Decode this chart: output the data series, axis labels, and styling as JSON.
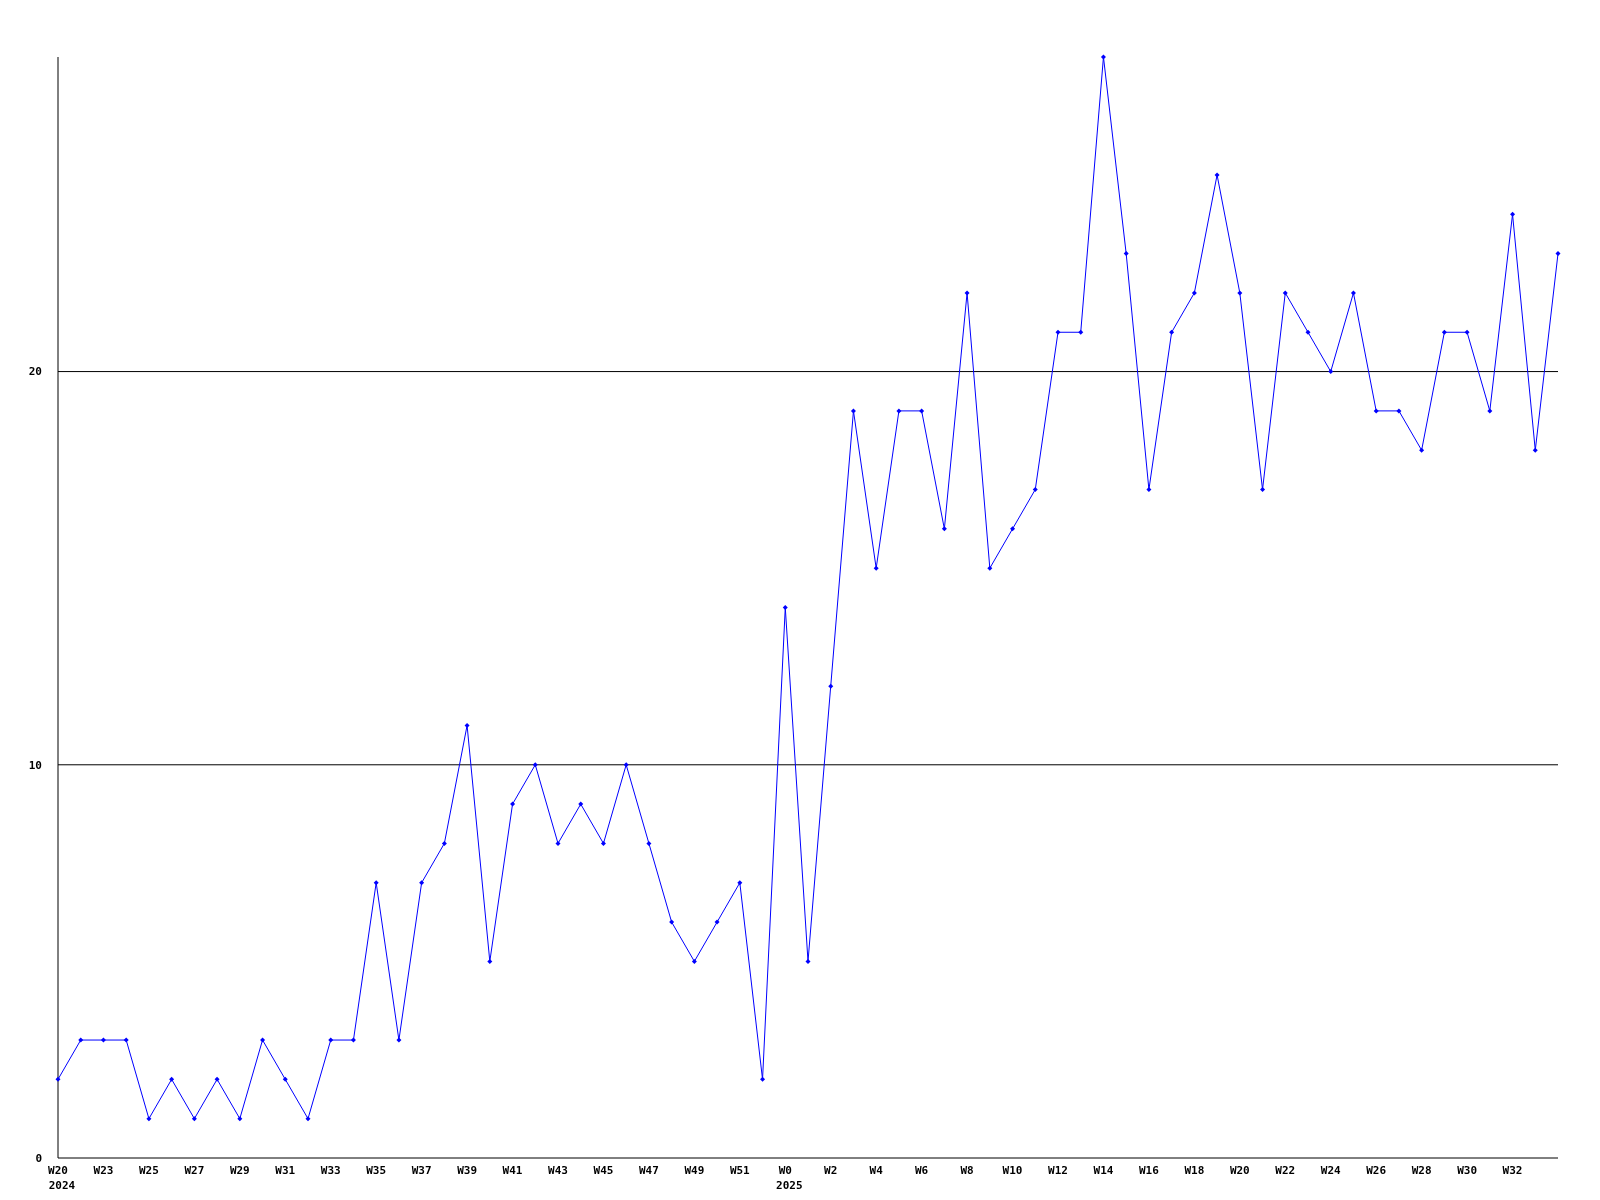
{
  "chart_data": {
    "type": "line",
    "categories": [
      "W20\n2024",
      null,
      "W23",
      null,
      "W25",
      null,
      "W27",
      null,
      "W29",
      null,
      "W31",
      null,
      "W33",
      null,
      "W35",
      null,
      "W37",
      null,
      "W39",
      null,
      "W41",
      null,
      "W43",
      null,
      "W45",
      null,
      "W47",
      null,
      "W49",
      null,
      "W51",
      null,
      "W0\n2025",
      null,
      "W2",
      null,
      "W4",
      null,
      "W6",
      null,
      "W8",
      null,
      "W10",
      null,
      "W12",
      null,
      "W14",
      null,
      "W16",
      null,
      "W18",
      null,
      "W20",
      null,
      "W22",
      null,
      "W24",
      null,
      "W26",
      null,
      "W28",
      null,
      "W30",
      null,
      "W32",
      null,
      null
    ],
    "series": [
      {
        "color": "#0000ff",
        "values": [
          2,
          3,
          3,
          3,
          1,
          2,
          1,
          2,
          1,
          3,
          2,
          1,
          3,
          3,
          7,
          3,
          7,
          8,
          11,
          5,
          9,
          10,
          8,
          9,
          8,
          10,
          8,
          6,
          5,
          6,
          7,
          2,
          14,
          5,
          12,
          19,
          15,
          19,
          19,
          16,
          22,
          15,
          16,
          17,
          21,
          21,
          28,
          23,
          17,
          21,
          22,
          25,
          22,
          17,
          22,
          21,
          20,
          22,
          19,
          19,
          18,
          21,
          21,
          19,
          24,
          18,
          23
        ]
      }
    ],
    "ylim": [
      0,
      28
    ],
    "yticks": [
      0,
      10,
      20
    ],
    "grid": "y",
    "marker": "diamond",
    "line_style": "solid"
  }
}
